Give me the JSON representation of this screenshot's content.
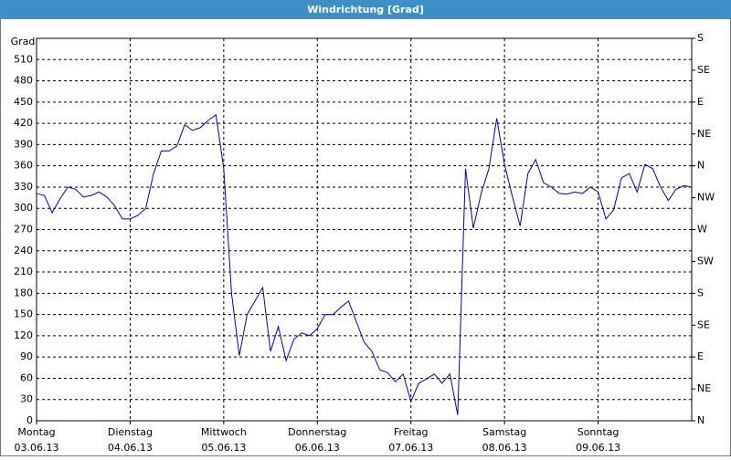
{
  "chart_data": {
    "type": "line",
    "title": "Windrichtung [Grad]",
    "y_label": "Grad",
    "xlim": [
      0,
      168
    ],
    "xticks": [
      {
        "value": 0,
        "label": "Montag",
        "date": "03.06.13"
      },
      {
        "value": 24,
        "label": "Dienstag",
        "date": "04.06.13"
      },
      {
        "value": 48,
        "label": "Mittwoch",
        "date": "05.06.13"
      },
      {
        "value": 72,
        "label": "Donnerstag",
        "date": "06.06.13"
      },
      {
        "value": 96,
        "label": "Freitag",
        "date": "07.06.13"
      },
      {
        "value": 120,
        "label": "Samstag",
        "date": "08.06.13"
      },
      {
        "value": 144,
        "label": "Sonntag",
        "date": "09.06.13"
      }
    ],
    "ylim": [
      0,
      540
    ],
    "yticks": [
      0,
      30,
      60,
      90,
      120,
      150,
      180,
      210,
      240,
      270,
      300,
      330,
      360,
      390,
      420,
      450,
      480,
      510
    ],
    "y2lim": [
      0,
      540
    ],
    "y2ticks": [
      {
        "value": 0,
        "label": "N"
      },
      {
        "value": 45,
        "label": "NE"
      },
      {
        "value": 90,
        "label": "E"
      },
      {
        "value": 135,
        "label": "SE"
      },
      {
        "value": 180,
        "label": "S"
      },
      {
        "value": 225,
        "label": "SW"
      },
      {
        "value": 270,
        "label": "W"
      },
      {
        "value": 315,
        "label": "NW"
      },
      {
        "value": 360,
        "label": "N"
      },
      {
        "value": 405,
        "label": "NE"
      },
      {
        "value": 450,
        "label": "E"
      },
      {
        "value": 495,
        "label": "SE"
      },
      {
        "value": 540,
        "label": "S"
      }
    ],
    "grid": true,
    "color": "#0000c0",
    "x": [
      0,
      2,
      4,
      6,
      8,
      10,
      12,
      14,
      16,
      18,
      20,
      22,
      24,
      26,
      28,
      30,
      32,
      34,
      36,
      38,
      40,
      42,
      44,
      46,
      48,
      50,
      52,
      54,
      56,
      58,
      60,
      62,
      64,
      66,
      68,
      70,
      72,
      74,
      76,
      78,
      80,
      82,
      84,
      86,
      88,
      90,
      92,
      94,
      96,
      98,
      100,
      102,
      104,
      106,
      108,
      110,
      112,
      114,
      116,
      118,
      120,
      122,
      124,
      126,
      128,
      130,
      132,
      134,
      136,
      138,
      140,
      142,
      144,
      146,
      148,
      150,
      152,
      154,
      156,
      158,
      160,
      162,
      164,
      166,
      168
    ],
    "values": [
      321,
      318,
      294,
      313,
      330,
      327,
      316,
      318,
      323,
      316,
      304,
      285,
      285,
      290,
      300,
      349,
      381,
      381,
      388,
      418,
      410,
      414,
      424,
      432,
      356,
      180,
      92,
      150,
      169,
      188,
      98,
      133,
      85,
      115,
      124,
      120,
      130,
      150,
      150,
      160,
      169,
      140,
      111,
      98,
      72,
      68,
      55,
      66,
      27,
      53,
      59,
      66,
      53,
      66,
      8,
      356,
      272,
      321,
      356,
      427,
      362,
      317,
      275,
      349,
      369,
      336,
      330,
      321,
      320,
      323,
      321,
      330,
      323,
      285,
      298,
      343,
      349,
      323,
      362,
      356,
      330,
      311,
      327,
      332,
      330
    ]
  }
}
